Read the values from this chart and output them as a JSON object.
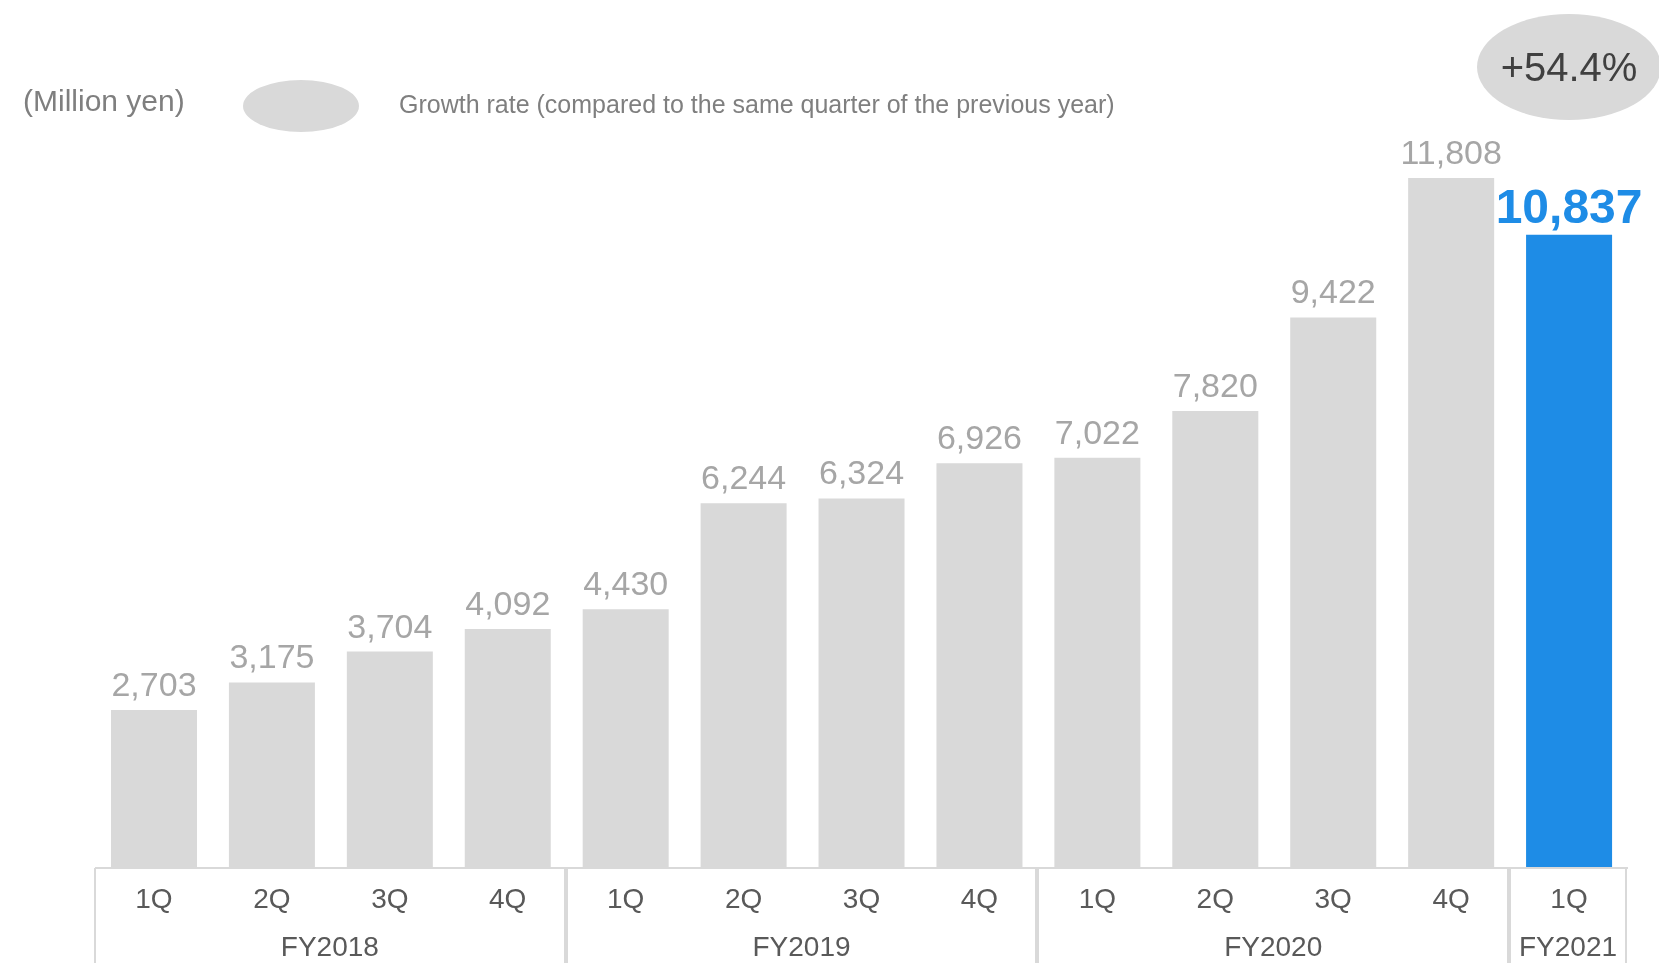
{
  "chart_data": {
    "type": "bar",
    "ylabel": "(Million yen)",
    "categories": [
      "1Q",
      "2Q",
      "3Q",
      "4Q",
      "1Q",
      "2Q",
      "3Q",
      "4Q",
      "1Q",
      "2Q",
      "3Q",
      "4Q",
      "1Q"
    ],
    "values": [
      2703,
      3175,
      3704,
      4092,
      4430,
      6244,
      6324,
      6926,
      7022,
      7820,
      9422,
      11808,
      10837
    ],
    "colors": [
      "#d9d9d9",
      "#d9d9d9",
      "#d9d9d9",
      "#d9d9d9",
      "#d9d9d9",
      "#d9d9d9",
      "#d9d9d9",
      "#d9d9d9",
      "#d9d9d9",
      "#d9d9d9",
      "#d9d9d9",
      "#d9d9d9",
      "#1e8ce6"
    ],
    "value_labels": [
      "2,703",
      "3,175",
      "3,704",
      "4,092",
      "4,430",
      "6,244",
      "6,324",
      "6,926",
      "7,022",
      "7,820",
      "9,422",
      "11,808",
      "10,837"
    ],
    "grid": false,
    "legend": false,
    "annotations": [
      "Growth rate (compared to the same quarter of the previous year)",
      "+54.4%",
      "FY2018",
      "FY2019",
      "FY2020",
      "FY2021"
    ]
  }
}
